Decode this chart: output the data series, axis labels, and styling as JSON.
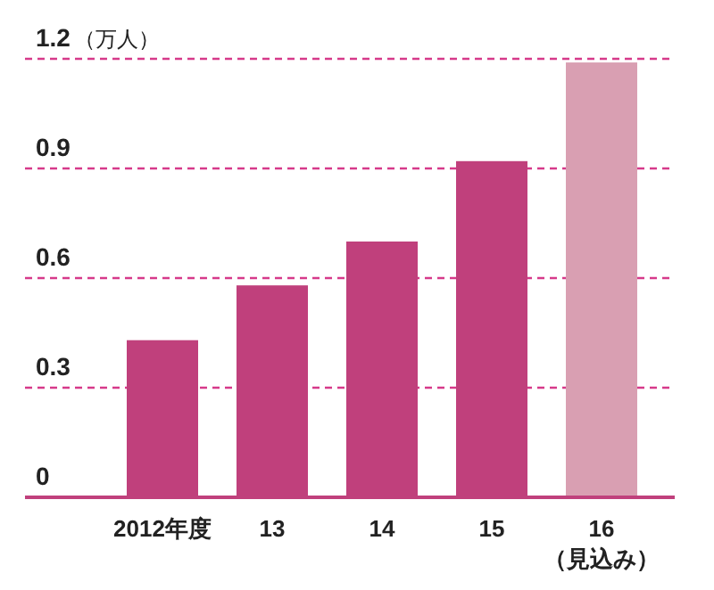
{
  "chart_data": {
    "type": "bar",
    "ylabel": "（万人）",
    "categories": [
      "2012年度",
      "13",
      "14",
      "15",
      "16\n（見込み）"
    ],
    "values": [
      0.43,
      0.58,
      0.7,
      0.92,
      1.19
    ],
    "colors": [
      "#c0407c",
      "#c0407c",
      "#c0407c",
      "#c0407c",
      "#d99fb2"
    ],
    "ylim": [
      0,
      1.2
    ],
    "yticks": [
      0,
      0.3,
      0.6,
      0.9,
      1.2
    ],
    "grid": "y"
  }
}
